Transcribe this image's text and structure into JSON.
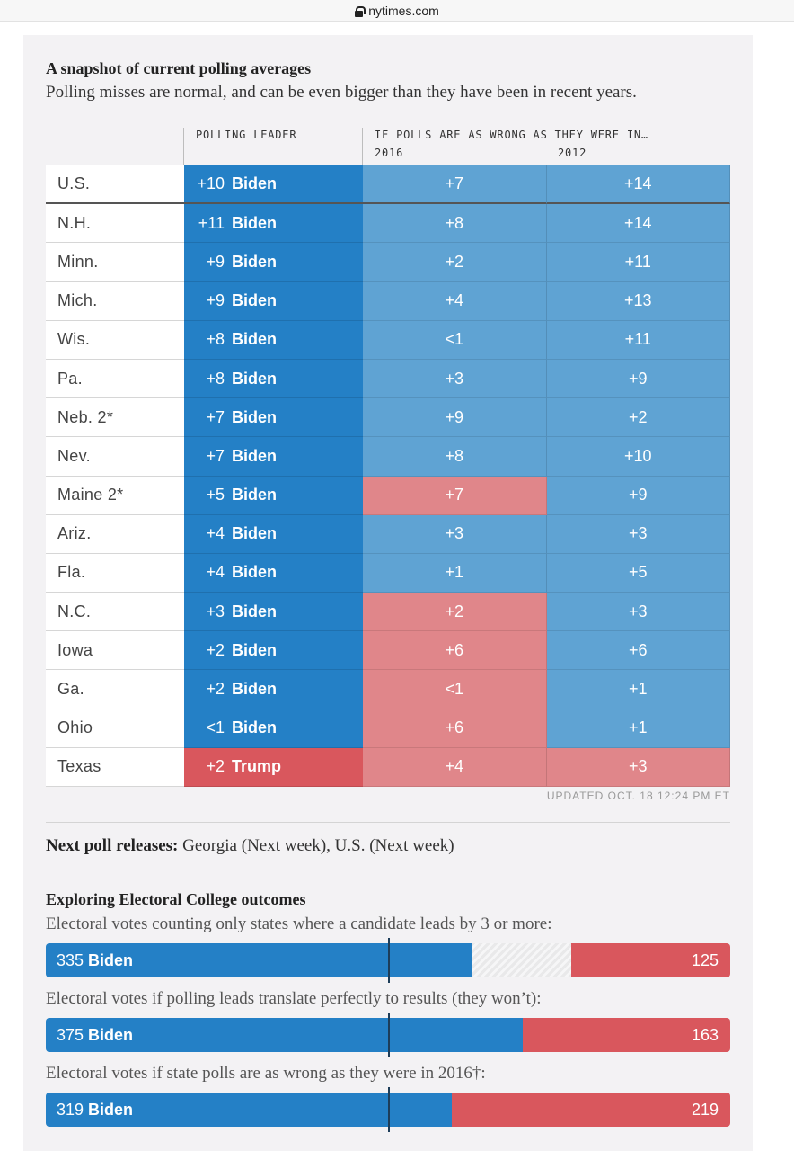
{
  "browser": {
    "url": "nytimes.com"
  },
  "header": {
    "title": "A snapshot of current polling averages",
    "subtitle": "Polling misses are normal, and can be even bigger than they have been in recent years."
  },
  "table": {
    "col_leader": "POLLING LEADER",
    "col_if": "IF POLLS ARE AS WRONG AS THEY WERE IN…",
    "col_2016": "2016",
    "col_2012": "2012",
    "rows": [
      {
        "state": "U.S.",
        "lead": "+10",
        "leader": "Biden",
        "y2016": "+7",
        "y2016_party": "dem",
        "y2012": "+14",
        "y2012_party": "dem"
      },
      {
        "state": "N.H.",
        "lead": "+11",
        "leader": "Biden",
        "y2016": "+8",
        "y2016_party": "dem",
        "y2012": "+14",
        "y2012_party": "dem"
      },
      {
        "state": "Minn.",
        "lead": "+9",
        "leader": "Biden",
        "y2016": "+2",
        "y2016_party": "dem",
        "y2012": "+11",
        "y2012_party": "dem"
      },
      {
        "state": "Mich.",
        "lead": "+9",
        "leader": "Biden",
        "y2016": "+4",
        "y2016_party": "dem",
        "y2012": "+13",
        "y2012_party": "dem"
      },
      {
        "state": "Wis.",
        "lead": "+8",
        "leader": "Biden",
        "y2016": "<1",
        "y2016_party": "dem",
        "y2012": "+11",
        "y2012_party": "dem"
      },
      {
        "state": "Pa.",
        "lead": "+8",
        "leader": "Biden",
        "y2016": "+3",
        "y2016_party": "dem",
        "y2012": "+9",
        "y2012_party": "dem"
      },
      {
        "state": "Neb. 2*",
        "lead": "+7",
        "leader": "Biden",
        "y2016": "+9",
        "y2016_party": "dem",
        "y2012": "+2",
        "y2012_party": "dem"
      },
      {
        "state": "Nev.",
        "lead": "+7",
        "leader": "Biden",
        "y2016": "+8",
        "y2016_party": "dem",
        "y2012": "+10",
        "y2012_party": "dem"
      },
      {
        "state": "Maine 2*",
        "lead": "+5",
        "leader": "Biden",
        "y2016": "+7",
        "y2016_party": "rep",
        "y2012": "+9",
        "y2012_party": "dem"
      },
      {
        "state": "Ariz.",
        "lead": "+4",
        "leader": "Biden",
        "y2016": "+3",
        "y2016_party": "dem",
        "y2012": "+3",
        "y2012_party": "dem"
      },
      {
        "state": "Fla.",
        "lead": "+4",
        "leader": "Biden",
        "y2016": "+1",
        "y2016_party": "dem",
        "y2012": "+5",
        "y2012_party": "dem"
      },
      {
        "state": "N.C.",
        "lead": "+3",
        "leader": "Biden",
        "y2016": "+2",
        "y2016_party": "rep",
        "y2012": "+3",
        "y2012_party": "dem"
      },
      {
        "state": "Iowa",
        "lead": "+2",
        "leader": "Biden",
        "y2016": "+6",
        "y2016_party": "rep",
        "y2012": "+6",
        "y2012_party": "dem"
      },
      {
        "state": "Ga.",
        "lead": "+2",
        "leader": "Biden",
        "y2016": "<1",
        "y2016_party": "rep",
        "y2012": "+1",
        "y2012_party": "dem"
      },
      {
        "state": "Ohio",
        "lead": "<1",
        "leader": "Biden",
        "y2016": "+6",
        "y2016_party": "rep",
        "y2012": "+1",
        "y2012_party": "dem"
      },
      {
        "state": "Texas",
        "lead": "+2",
        "leader": "Trump",
        "y2016": "+4",
        "y2016_party": "rep",
        "y2012": "+3",
        "y2012_party": "rep"
      }
    ],
    "updated": "UPDATED OCT. 18 12:24 PM ET"
  },
  "next_poll": {
    "label": "Next poll releases:",
    "text": " Georgia (Next week), U.S. (Next week)"
  },
  "electoral": {
    "title": "Exploring Electoral College outcomes",
    "bars": [
      {
        "label": "Electoral votes counting only states where a candidate leads by 3 or more:",
        "biden_votes": "335",
        "biden_name": "Biden",
        "trump_votes": "125",
        "biden_value": 335,
        "trump_value": 125
      },
      {
        "label": "Electoral votes if polling leads translate perfectly to results (they won’t):",
        "biden_votes": "375",
        "biden_name": "Biden",
        "trump_votes": "163",
        "biden_value": 375,
        "trump_value": 163
      },
      {
        "label": "Electoral votes if state polls are as wrong as they were in 2016†:",
        "biden_votes": "319",
        "biden_name": "Biden",
        "trump_votes": "219",
        "biden_value": 319,
        "trump_value": 219
      }
    ],
    "total_votes": 538,
    "colors": {
      "dem": "#2480c6",
      "rep": "#d9575d",
      "dem_light": "#5fa3d3",
      "rep_light": "#e0868a"
    }
  }
}
